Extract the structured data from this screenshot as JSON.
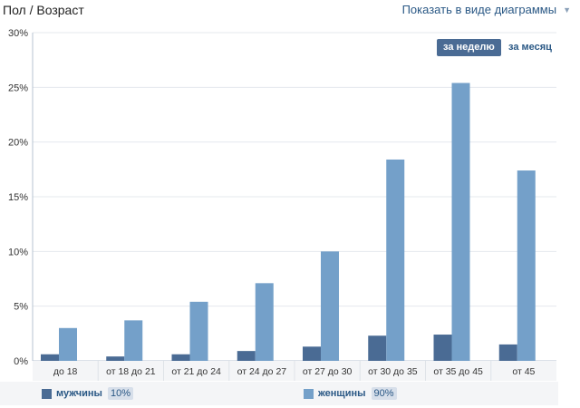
{
  "header": {
    "title": "Пол / Возраст",
    "view_toggle_label": "Показать в виде диаграммы",
    "view_toggle_icon": "chevron-down-icon"
  },
  "period_tabs": [
    {
      "label": "за неделю",
      "active": true
    },
    {
      "label": "за месяц",
      "active": false
    }
  ],
  "legend": [
    {
      "label": "мужчины",
      "percent": "10%",
      "color": "#4a6b94"
    },
    {
      "label": "женщины",
      "percent": "90%",
      "color": "#74a0c9"
    }
  ],
  "chart_data": {
    "type": "bar",
    "categories": [
      "до 18",
      "от 18 до 21",
      "от 21 до 24",
      "от 24 до 27",
      "от 27 до 30",
      "от 30 до 35",
      "от 35 до 45",
      "от 45"
    ],
    "series": [
      {
        "name": "мужчины",
        "color": "#4a6b94",
        "values": [
          0.6,
          0.4,
          0.6,
          0.9,
          1.3,
          2.3,
          2.4,
          1.5
        ]
      },
      {
        "name": "женщины",
        "color": "#74a0c9",
        "values": [
          3.0,
          3.7,
          5.4,
          7.1,
          10.0,
          18.4,
          25.4,
          17.4
        ]
      }
    ],
    "ylim": [
      0,
      30
    ],
    "yticks": [
      "0%",
      "5%",
      "10%",
      "15%",
      "20%",
      "25%",
      "30%"
    ],
    "grid": true,
    "legend_position": "bottom"
  }
}
